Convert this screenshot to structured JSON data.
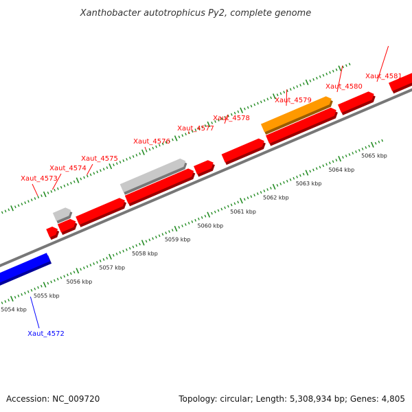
{
  "title": "Xanthobacter autotrophicus Py2, complete genome",
  "accession_text": "Accession: NC_009720",
  "summary_text": "Topology: circular; Length: 5,308,934 bp; Genes: 4,805",
  "colors": {
    "forward": "#ff0000",
    "reverse": "#0000ff",
    "highlight": "#ff9900",
    "other": "#c8c8c8",
    "backbone": "#777777",
    "ticks": "#228b22"
  },
  "scale": {
    "unit": "kbp",
    "labels": [
      {
        "kbp": 5054,
        "text": "5054 kbp"
      },
      {
        "kbp": 5055,
        "text": "5055 kbp"
      },
      {
        "kbp": 5056,
        "text": "5056 kbp"
      },
      {
        "kbp": 5057,
        "text": "5057 kbp"
      },
      {
        "kbp": 5058,
        "text": "5058 kbp"
      },
      {
        "kbp": 5059,
        "text": "5059 kbp"
      },
      {
        "kbp": 5060,
        "text": "5060 kbp"
      },
      {
        "kbp": 5061,
        "text": "5061 kbp"
      },
      {
        "kbp": 5062,
        "text": "5062 kbp"
      },
      {
        "kbp": 5063,
        "text": "5063 kbp"
      },
      {
        "kbp": 5064,
        "text": "5064 kbp"
      },
      {
        "kbp": 5065,
        "text": "5065 kbp"
      }
    ]
  },
  "features": [
    {
      "name": "Xaut_4572",
      "strand": "reverse",
      "type": "gene",
      "start_kbp": 5053.6,
      "end_kbp": 5055.4,
      "labeled": true
    },
    {
      "name": "Xaut_4573",
      "strand": "forward",
      "type": "gene",
      "start_kbp": 5055.65,
      "end_kbp": 5055.95,
      "labeled": true
    },
    {
      "name": "Xaut_4574",
      "strand": "forward",
      "type": "gene",
      "start_kbp": 5056.0,
      "end_kbp": 5056.5,
      "labeled": true
    },
    {
      "name": "Xaut_4575",
      "strand": "forward",
      "type": "gene",
      "start_kbp": 5056.55,
      "end_kbp": 5058.0,
      "labeled": true
    },
    {
      "name": "Xaut_4576",
      "strand": "forward",
      "type": "gene",
      "start_kbp": 5058.05,
      "end_kbp": 5060.1,
      "labeled": true
    },
    {
      "name": "Xaut_4577",
      "strand": "forward",
      "type": "gene",
      "start_kbp": 5060.15,
      "end_kbp": 5060.7,
      "labeled": true
    },
    {
      "name": "Xaut_4578",
      "strand": "forward",
      "type": "gene",
      "start_kbp": 5061.0,
      "end_kbp": 5062.25,
      "labeled": true
    },
    {
      "name": "Xaut_4579",
      "strand": "forward",
      "type": "gene",
      "start_kbp": 5062.35,
      "end_kbp": 5064.45,
      "labeled": true
    },
    {
      "name": "Xaut_4580",
      "strand": "forward",
      "type": "gene",
      "start_kbp": 5064.55,
      "end_kbp": 5065.6,
      "labeled": true
    },
    {
      "name": "Xaut_4581",
      "strand": "forward",
      "type": "gene",
      "start_kbp": 5066.1,
      "end_kbp": 5067.0,
      "labeled": true
    },
    {
      "name": "",
      "strand": "forward",
      "type": "other",
      "start_kbp": 5056.0,
      "end_kbp": 5056.5,
      "labeled": false
    },
    {
      "name": "",
      "strand": "forward",
      "type": "other",
      "start_kbp": 5058.05,
      "end_kbp": 5060.0,
      "labeled": false
    },
    {
      "name": "",
      "strand": "forward",
      "type": "highlight",
      "start_kbp": 5062.35,
      "end_kbp": 5064.45,
      "labeled": false
    }
  ]
}
